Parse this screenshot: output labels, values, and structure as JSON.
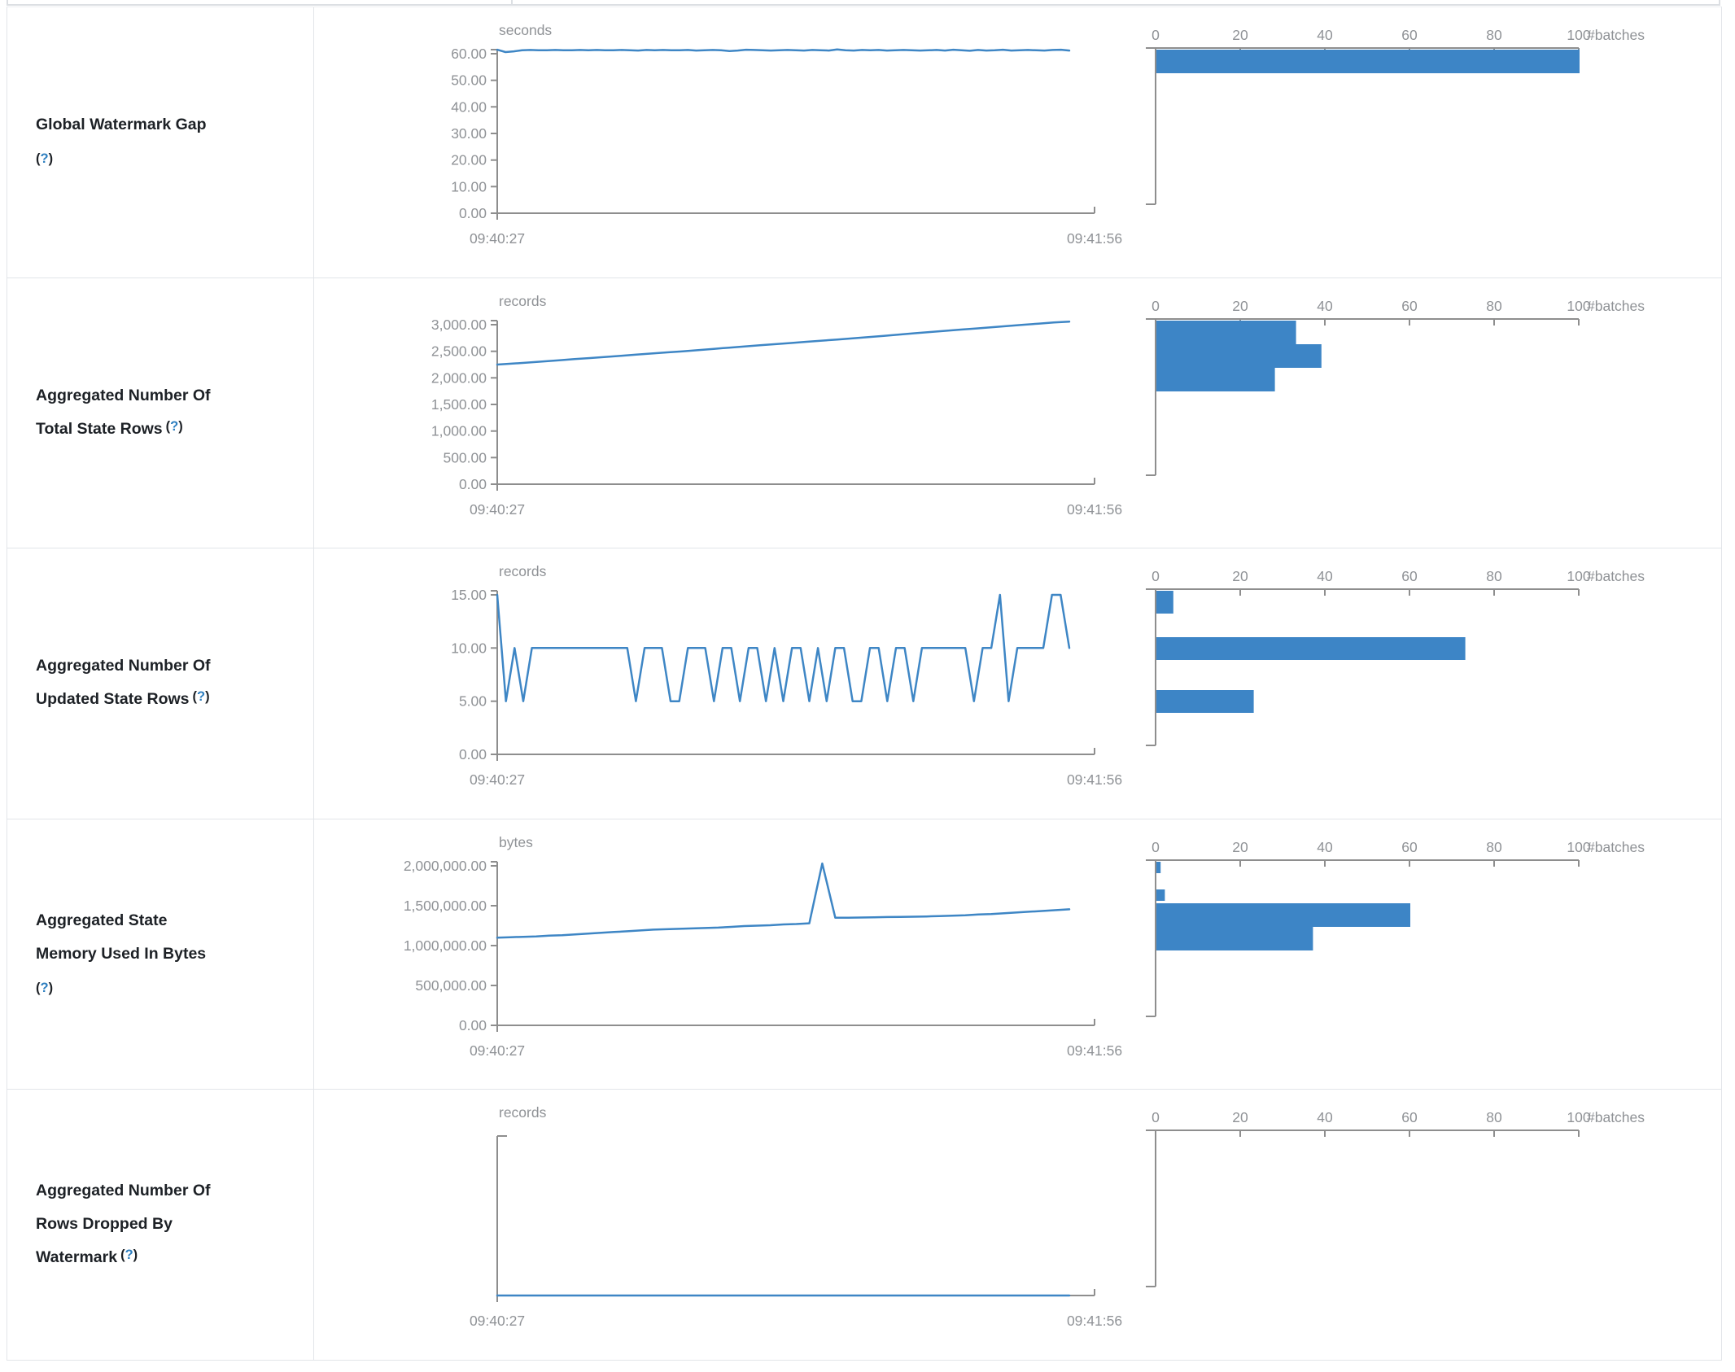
{
  "colors": {
    "accent_blue": "#3e86c5",
    "bar_blue": "#3d85c6",
    "axis_gray": "#8e8e8e",
    "chart_text_gray": "#8f9296",
    "label_text": "#1d2126",
    "help_blue": "#2e7fc0",
    "border": "#e2e5e9"
  },
  "rows": [
    {
      "label_lines": [
        "Global Watermark Gap"
      ],
      "help_open": "(",
      "help_char": "?",
      "help_close": ")",
      "help_own_line": true
    },
    {
      "label_lines": [
        "Aggregated Number Of",
        "Total State Rows"
      ],
      "help_open": "(",
      "help_char": "?",
      "help_close": ")",
      "help_own_line": false
    },
    {
      "label_lines": [
        "Aggregated Number Of",
        "Updated State Rows"
      ],
      "help_open": "(",
      "help_char": "?",
      "help_close": ")",
      "help_own_line": false
    },
    {
      "label_lines": [
        "Aggregated State",
        "Memory Used In Bytes"
      ],
      "help_open": "(",
      "help_char": "?",
      "help_close": ")",
      "help_own_line": true
    },
    {
      "label_lines": [
        "Aggregated Number Of",
        "Rows Dropped By",
        "Watermark"
      ],
      "help_open": "(",
      "help_char": "?",
      "help_close": ")",
      "help_own_line": false
    }
  ],
  "chart_data": [
    {
      "type": "line",
      "title": "seconds",
      "x_start": "09:40:27",
      "x_end": "09:41:56",
      "ylim": [
        0,
        62
      ],
      "y_axis": {
        "max_label_value": 60,
        "ticks": [
          {
            "label": "60.00",
            "value": 60
          },
          {
            "label": "50.00",
            "value": 50
          },
          {
            "label": "40.00",
            "value": 40
          },
          {
            "label": "30.00",
            "value": 30
          },
          {
            "label": "20.00",
            "value": 20
          },
          {
            "label": "10.00",
            "value": 10
          },
          {
            "label": "0.00",
            "value": 0
          }
        ]
      },
      "values": [
        61.5,
        60.6,
        60.9,
        61.3,
        61.4,
        61.3,
        61.3,
        61.4,
        61.3,
        61.3,
        61.4,
        61.3,
        61.4,
        61.3,
        61.3,
        61.4,
        61.3,
        61.2,
        61.4,
        61.3,
        61.4,
        61.3,
        61.3,
        61.4,
        61.2,
        61.3,
        61.4,
        61.3,
        61.0,
        61.2,
        61.5,
        61.4,
        61.3,
        61.2,
        61.3,
        61.4,
        61.3,
        61.2,
        61.4,
        61.3,
        61.2,
        61.6,
        61.3,
        61.2,
        61.4,
        61.3,
        61.4,
        61.2,
        61.3,
        61.4,
        61.3,
        61.2,
        61.3,
        61.4,
        61.2,
        61.5,
        61.3,
        61.1,
        61.4,
        61.2,
        61.3,
        61.5,
        61.2,
        61.3,
        61.4,
        61.3,
        61.2,
        61.4,
        61.5,
        61.2
      ],
      "histogram": {
        "type": "bar",
        "xlabel": "#batches",
        "xlim": [
          0,
          100
        ],
        "ticks": [
          "0",
          "20",
          "40",
          "60",
          "80",
          "100"
        ],
        "bars": [
          {
            "batches": 100,
            "top": 52,
            "h": 29
          }
        ]
      }
    },
    {
      "type": "line",
      "title": "records",
      "x_start": "09:40:27",
      "x_end": "09:41:56",
      "ylim": [
        0,
        3100
      ],
      "y_axis": {
        "max_label_value": 3000,
        "ticks": [
          {
            "label": "3,000.00",
            "value": 3000
          },
          {
            "label": "2,500.00",
            "value": 2500
          },
          {
            "label": "2,000.00",
            "value": 2000
          },
          {
            "label": "1,500.00",
            "value": 1500
          },
          {
            "label": "1,000.00",
            "value": 1000
          },
          {
            "label": "500.00",
            "value": 500
          },
          {
            "label": "0.00",
            "value": 0
          }
        ]
      },
      "values": [
        2250,
        2268,
        2288,
        2310,
        2330,
        2352,
        2372,
        2394,
        2415,
        2437,
        2458,
        2480,
        2500,
        2522,
        2545,
        2568,
        2590,
        2612,
        2634,
        2655,
        2678,
        2700,
        2722,
        2745,
        2768,
        2790,
        2815,
        2840,
        2862,
        2885,
        2908,
        2930,
        2952,
        2975,
        2998,
        3020,
        3042,
        3058
      ],
      "histogram": {
        "type": "bar",
        "xlabel": "#batches",
        "xlim": [
          0,
          100
        ],
        "ticks": [
          "0",
          "20",
          "40",
          "60",
          "80",
          "100"
        ],
        "bars": [
          {
            "batches": 33,
            "top": 52,
            "h": 29
          },
          {
            "batches": 39,
            "top": 81,
            "h": 29
          },
          {
            "batches": 28,
            "top": 110,
            "h": 29
          }
        ]
      }
    },
    {
      "type": "line",
      "title": "records",
      "x_start": "09:40:27",
      "x_end": "09:41:56",
      "ylim": [
        0,
        15
      ],
      "y_axis": {
        "max_label_value": 15,
        "ticks": [
          {
            "label": "15.00",
            "value": 15
          },
          {
            "label": "10.00",
            "value": 10
          },
          {
            "label": "5.00",
            "value": 5
          },
          {
            "label": "0.00",
            "value": 0
          }
        ]
      },
      "values": [
        15,
        5,
        10,
        5,
        10,
        10,
        10,
        10,
        10,
        10,
        10,
        10,
        10,
        10,
        10,
        10,
        5,
        10,
        10,
        10,
        5,
        5,
        10,
        10,
        10,
        5,
        10,
        10,
        5,
        10,
        10,
        5,
        10,
        5,
        10,
        10,
        5,
        10,
        5,
        10,
        10,
        5,
        5,
        10,
        10,
        5,
        10,
        10,
        5,
        10,
        10,
        10,
        10,
        10,
        10,
        5,
        10,
        10,
        15,
        5,
        10,
        10,
        10,
        10,
        15,
        15,
        10
      ],
      "histogram": {
        "type": "bar",
        "xlabel": "#batches",
        "xlim": [
          0,
          100
        ],
        "ticks": [
          "0",
          "20",
          "40",
          "60",
          "80",
          "100"
        ],
        "bars": [
          {
            "batches": 4,
            "top": 52,
            "h": 28
          },
          {
            "batches": 73,
            "top": 109,
            "h": 28
          },
          {
            "batches": 23,
            "top": 174,
            "h": 28
          }
        ]
      }
    },
    {
      "type": "line",
      "title": "bytes",
      "x_start": "09:40:27",
      "x_end": "09:41:56",
      "ylim": [
        0,
        2050000
      ],
      "y_axis": {
        "max_label_value": 2000000,
        "ticks": [
          {
            "label": "2,000,000.00",
            "value": 2000000
          },
          {
            "label": "1,500,000.00",
            "value": 1500000
          },
          {
            "label": "1,000,000.00",
            "value": 1000000
          },
          {
            "label": "500,000.00",
            "value": 500000
          },
          {
            "label": "0.00",
            "value": 0
          }
        ]
      },
      "values": [
        1100000,
        1105000,
        1110000,
        1115000,
        1125000,
        1130000,
        1140000,
        1150000,
        1160000,
        1170000,
        1180000,
        1190000,
        1200000,
        1205000,
        1210000,
        1215000,
        1220000,
        1225000,
        1235000,
        1245000,
        1250000,
        1255000,
        1265000,
        1270000,
        1280000,
        2030000,
        1350000,
        1350000,
        1352000,
        1355000,
        1358000,
        1360000,
        1362000,
        1365000,
        1370000,
        1375000,
        1380000,
        1390000,
        1395000,
        1405000,
        1415000,
        1425000,
        1435000,
        1445000,
        1455000
      ],
      "histogram": {
        "type": "bar",
        "xlabel": "#batches",
        "xlim": [
          0,
          100
        ],
        "ticks": [
          "0",
          "20",
          "40",
          "60",
          "80",
          "100"
        ],
        "bars": [
          {
            "batches": 1,
            "top": 52,
            "h": 14
          },
          {
            "batches": 2,
            "top": 86,
            "h": 14
          },
          {
            "batches": 60,
            "top": 103,
            "h": 29
          },
          {
            "batches": 37,
            "top": 132,
            "h": 29
          }
        ]
      }
    },
    {
      "type": "line",
      "title": "records",
      "x_start": "09:40:27",
      "x_end": "09:41:56",
      "ylim": [
        0,
        0
      ],
      "y_axis": {
        "max_label_value": null,
        "ticks": []
      },
      "values": [
        0,
        0
      ],
      "histogram": {
        "type": "bar",
        "xlabel": "#batches",
        "xlim": [
          0,
          100
        ],
        "ticks": [
          "0",
          "20",
          "40",
          "60",
          "80",
          "100"
        ],
        "bars": []
      }
    }
  ]
}
